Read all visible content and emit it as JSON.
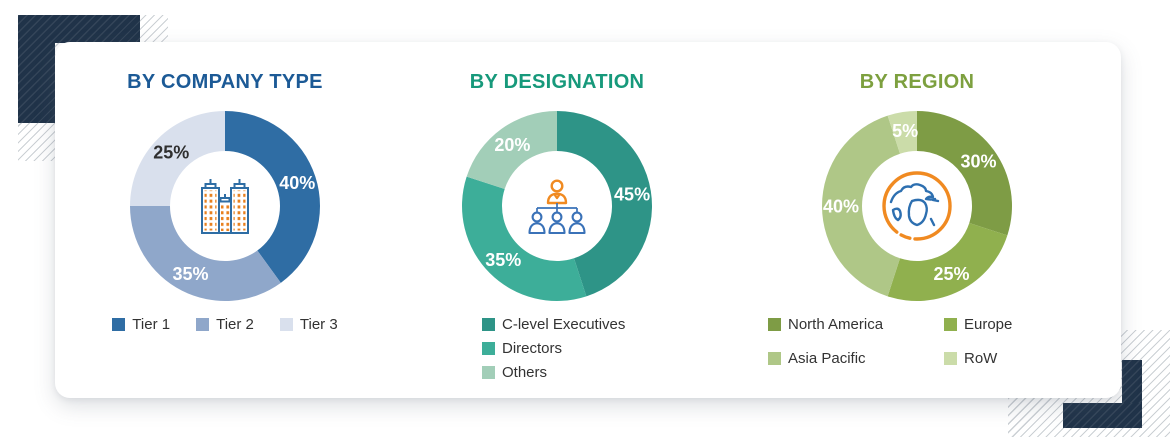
{
  "page": {
    "background_color": "#FFFFFF",
    "corner_accent_color": "#203349",
    "legend_text_color": "#333333"
  },
  "chart_data": [
    {
      "type": "pie",
      "subtype": "donut",
      "title": "BY COMPANY TYPE",
      "title_color": "#1C5A96",
      "center_icon": "buildings-icon",
      "legend_position": "bottom-row",
      "slices": [
        {
          "label": "Tier 1",
          "value": 40,
          "display": "40%",
          "color": "#2F6DA4",
          "label_color": "#FFFFFF"
        },
        {
          "label": "Tier 2",
          "value": 35,
          "display": "35%",
          "color": "#8FA7CA",
          "label_color": "#FFFFFF"
        },
        {
          "label": "Tier 3",
          "value": 25,
          "display": "25%",
          "color": "#D9E0ED",
          "label_color": "#2F2F2F"
        }
      ]
    },
    {
      "type": "pie",
      "subtype": "donut",
      "title": "BY DESIGNATION",
      "title_color": "#17997B",
      "center_icon": "org-chart-icon",
      "legend_position": "bottom-column",
      "slices": [
        {
          "label": "C-level Executives",
          "value": 45,
          "display": "45%",
          "color": "#2E9487",
          "label_color": "#FFFFFF"
        },
        {
          "label": "Directors",
          "value": 35,
          "display": "35%",
          "color": "#3DAE99",
          "label_color": "#FFFFFF"
        },
        {
          "label": "Others",
          "value": 20,
          "display": "20%",
          "color": "#A2CEB8",
          "label_color": "#FFFFFF"
        }
      ]
    },
    {
      "type": "pie",
      "subtype": "donut",
      "title": "BY REGION",
      "title_color": "#7DA03F",
      "center_icon": "globe-icon",
      "legend_position": "bottom-grid-2col",
      "slices": [
        {
          "label": "North America",
          "value": 30,
          "display": "30%",
          "color": "#7E9C45",
          "label_color": "#FFFFFF"
        },
        {
          "label": "Europe",
          "value": 25,
          "display": "25%",
          "color": "#90B04E",
          "label_color": "#FFFFFF"
        },
        {
          "label": "Asia Pacific",
          "value": 40,
          "display": "40%",
          "color": "#AFC787",
          "label_color": "#FFFFFF"
        },
        {
          "label": "RoW",
          "value": 5,
          "display": "5%",
          "color": "#CBDCA9",
          "label_color": "#FFFFFF"
        }
      ]
    }
  ]
}
